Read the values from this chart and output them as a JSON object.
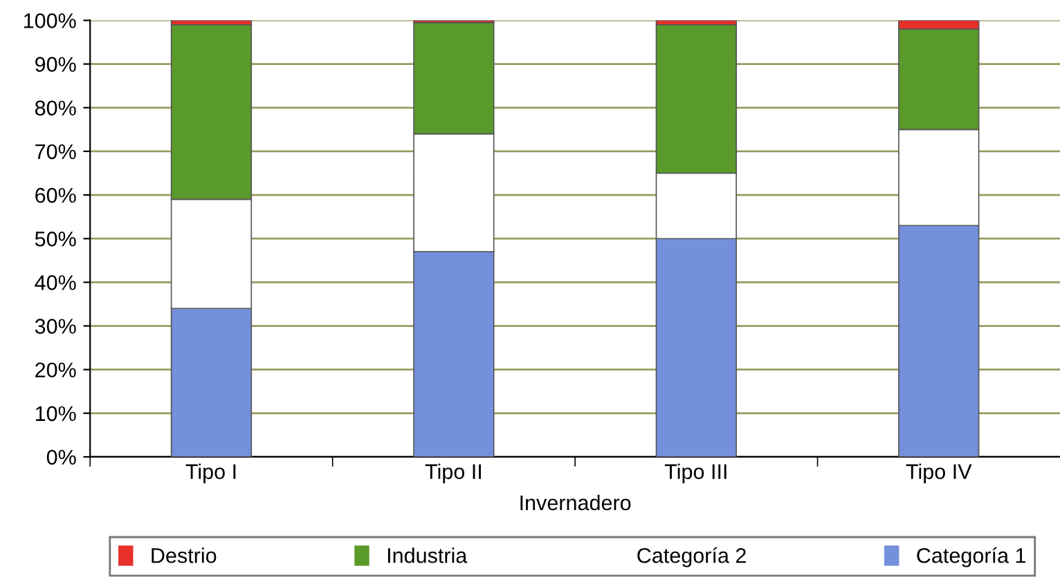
{
  "chart_data": {
    "type": "bar",
    "stacked": true,
    "xlabel": "Invernadero",
    "categories": [
      "Tipo I",
      "Tipo II",
      "Tipo III",
      "Tipo IV"
    ],
    "series": [
      {
        "name": "Categoría 1",
        "color": "#7490dc",
        "values": [
          34,
          47,
          50,
          53
        ]
      },
      {
        "name": "Categoría 2",
        "color": "#ffffff",
        "values": [
          25,
          27,
          15,
          22
        ]
      },
      {
        "name": "Industria",
        "color": "#5a9a2a",
        "values": [
          40,
          25.5,
          34,
          23
        ]
      },
      {
        "name": "Destrio",
        "color": "#e8302a",
        "values": [
          1,
          0.5,
          1,
          2
        ]
      }
    ],
    "ylim": [
      0,
      100
    ],
    "yticks": [
      {
        "value": 0,
        "label": "0%"
      },
      {
        "value": 10,
        "label": "10%"
      },
      {
        "value": 20,
        "label": "20%"
      },
      {
        "value": 30,
        "label": "30%"
      },
      {
        "value": 40,
        "label": "40%"
      },
      {
        "value": 50,
        "label": "50%"
      },
      {
        "value": 60,
        "label": "60%"
      },
      {
        "value": 70,
        "label": "70%"
      },
      {
        "value": 80,
        "label": "80%"
      },
      {
        "value": 90,
        "label": "90%"
      },
      {
        "value": 100,
        "label": "100%"
      }
    ],
    "grid": "y",
    "legend": "bottom"
  }
}
